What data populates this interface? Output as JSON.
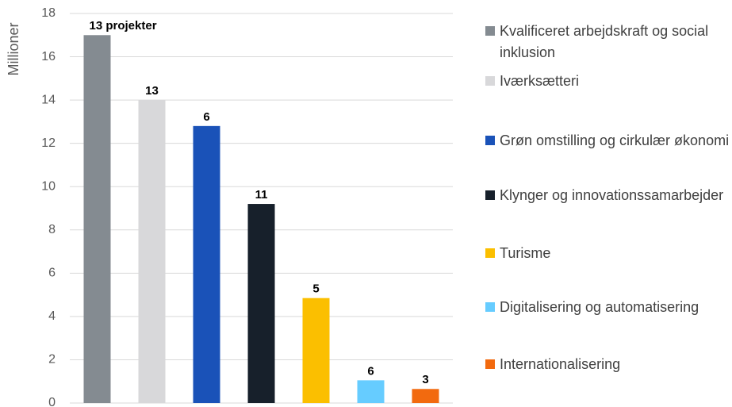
{
  "chart_data": {
    "type": "bar",
    "y_label": "Millioner",
    "categories": [
      "Kvalificeret arbejdskraft og social inklusion",
      "Iværksætteri",
      "Grøn omstilling og cirkulær økonomi",
      "Klynger og innovationssamarbejder",
      "Turisme",
      "Digitalisering og automatisering",
      "Internationalisering"
    ],
    "values": [
      17.0,
      14.0,
      12.8,
      9.2,
      4.85,
      1.05,
      0.65
    ],
    "colors": [
      "#848b91",
      "#d8d8da",
      "#1a52b8",
      "#17202b",
      "#fbbf00",
      "#66ccff",
      "#f26a0f"
    ],
    "annotations": [
      "13  projekter",
      "13",
      "6",
      "11",
      "5",
      "6",
      "3"
    ],
    "ylim": [
      0,
      18
    ],
    "yticks": [
      0,
      2,
      4,
      6,
      8,
      10,
      12,
      14,
      16,
      18
    ],
    "grid": true
  }
}
